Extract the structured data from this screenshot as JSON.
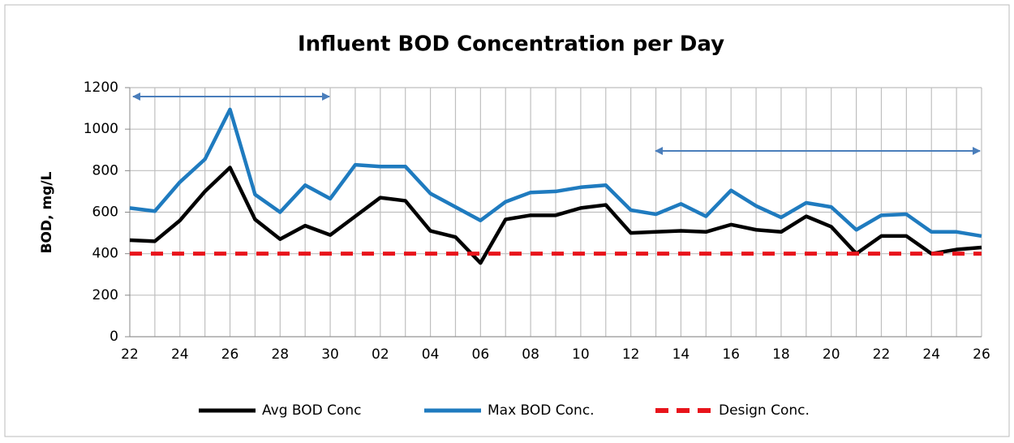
{
  "chart_data": {
    "type": "line",
    "title": "Influent BOD Concentration per Day",
    "ylabel": "BOD, mg/L",
    "categories": [
      "22",
      null,
      "24",
      null,
      "26",
      null,
      "28",
      null,
      "30",
      null,
      "02",
      null,
      "04",
      null,
      "06",
      null,
      "08",
      null,
      "10",
      null,
      "12",
      null,
      "14",
      null,
      "16",
      null,
      "18",
      null,
      "20",
      null,
      "22",
      null,
      "24",
      null,
      "26"
    ],
    "series": [
      {
        "name": "Avg BOD Conc",
        "color": "#000000",
        "dash": false,
        "values": [
          465,
          460,
          560,
          700,
          815,
          565,
          470,
          535,
          490,
          580,
          670,
          655,
          510,
          480,
          355,
          565,
          585,
          585,
          620,
          635,
          500,
          505,
          510,
          505,
          540,
          515,
          505,
          580,
          530,
          400,
          485,
          485,
          400,
          420,
          430
        ]
      },
      {
        "name": "Max BOD Conc.",
        "color": "#1f7bbf",
        "dash": false,
        "values": [
          620,
          605,
          745,
          855,
          1095,
          685,
          600,
          730,
          665,
          828,
          820,
          820,
          690,
          625,
          560,
          650,
          695,
          700,
          720,
          730,
          610,
          590,
          640,
          580,
          705,
          630,
          575,
          645,
          625,
          515,
          585,
          590,
          505,
          505,
          485
        ]
      },
      {
        "name": "Design Conc.",
        "color": "#e8141b",
        "dash": true,
        "values": [
          400,
          400,
          400,
          400,
          400,
          400,
          400,
          400,
          400,
          400,
          400,
          400,
          400,
          400,
          400,
          400,
          400,
          400,
          400,
          400,
          400,
          400,
          400,
          400,
          400,
          400,
          400,
          400,
          400,
          400,
          400,
          400,
          400,
          400,
          400
        ]
      }
    ],
    "ylim": [
      0,
      1200
    ],
    "yticks": [
      0,
      200,
      400,
      600,
      800,
      1000,
      1200
    ],
    "grid": true,
    "legend": "bottom"
  }
}
